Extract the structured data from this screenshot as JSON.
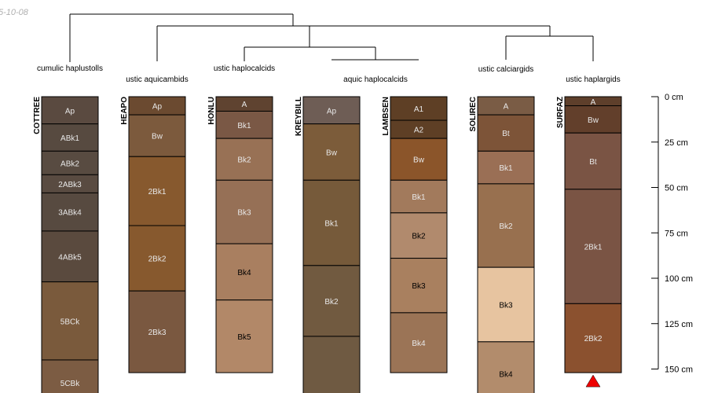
{
  "date_stamp": "5-10-08",
  "depth_unit": "cm",
  "depth_axis": {
    "min": 0,
    "max": 150,
    "ticks": [
      {
        "value": 0,
        "label": "0 cm"
      },
      {
        "value": 25,
        "label": "25 cm"
      },
      {
        "value": 50,
        "label": "50 cm"
      },
      {
        "value": 75,
        "label": "75 cm"
      },
      {
        "value": 100,
        "label": "100 cm"
      },
      {
        "value": 125,
        "label": "125 cm"
      },
      {
        "value": 150,
        "label": "150 cm"
      }
    ]
  },
  "taxa": [
    {
      "label": "cumulic haplustolls"
    },
    {
      "label": "ustic aquicambids"
    },
    {
      "label": "ustic haplocalcids"
    },
    {
      "label": "aquic haplocalcids"
    },
    {
      "label": "ustic calciargids"
    },
    {
      "label": "ustic haplargids"
    }
  ],
  "profiles": [
    {
      "name": "COTTREE",
      "horizons": [
        {
          "name": "Ap",
          "top": 0,
          "bottom": 15,
          "color": "#5a4a40",
          "text_color": "#e8e8e8"
        },
        {
          "name": "ABk1",
          "top": 15,
          "bottom": 30,
          "color": "#574a40",
          "text_color": "#e8e8e8"
        },
        {
          "name": "ABk2",
          "top": 30,
          "bottom": 43,
          "color": "#584b41",
          "text_color": "#e8e8e8"
        },
        {
          "name": "2ABk3",
          "top": 43,
          "bottom": 53,
          "color": "#594b41",
          "text_color": "#e8e8e8"
        },
        {
          "name": "3ABk4",
          "top": 53,
          "bottom": 74,
          "color": "#574a40",
          "text_color": "#e8e8e8"
        },
        {
          "name": "4ABk5",
          "top": 74,
          "bottom": 102,
          "color": "#5a4a3e",
          "text_color": "#e8e8e8"
        },
        {
          "name": "5BCk",
          "top": 102,
          "bottom": 145,
          "color": "#7a5a3c",
          "text_color": "#e8e8e8"
        },
        {
          "name": "5CBk",
          "top": 145,
          "bottom": 170,
          "color": "#7c5c43",
          "text_color": "#e8e8e8"
        }
      ]
    },
    {
      "name": "HEAPO",
      "horizons": [
        {
          "name": "Ap",
          "top": 0,
          "bottom": 10,
          "color": "#6b4a30",
          "text_color": "#e8e8e8"
        },
        {
          "name": "Bw",
          "top": 10,
          "bottom": 33,
          "color": "#7c5a3d",
          "text_color": "#e8e8e8"
        },
        {
          "name": "2Bk1",
          "top": 33,
          "bottom": 71,
          "color": "#87592e",
          "text_color": "#e8e8e8"
        },
        {
          "name": "2Bk2",
          "top": 71,
          "bottom": 107,
          "color": "#87592e",
          "text_color": "#e8e8e8"
        },
        {
          "name": "2Bk3",
          "top": 107,
          "bottom": 152,
          "color": "#7a5840",
          "text_color": "#e8e8e8"
        }
      ]
    },
    {
      "name": "HONLU",
      "horizons": [
        {
          "name": "A",
          "top": 0,
          "bottom": 8,
          "color": "#5f4330",
          "text_color": "#e8e8e8"
        },
        {
          "name": "Bk1",
          "top": 8,
          "bottom": 23,
          "color": "#7a5845",
          "text_color": "#e8e8e8"
        },
        {
          "name": "Bk2",
          "top": 23,
          "bottom": 46,
          "color": "#987155",
          "text_color": "#e8e8e8"
        },
        {
          "name": "Bk3",
          "top": 46,
          "bottom": 81,
          "color": "#967056",
          "text_color": "#e8e8e8"
        },
        {
          "name": "Bk4",
          "top": 81,
          "bottom": 112,
          "color": "#a97f60",
          "text_color": "#000000"
        },
        {
          "name": "Bk5",
          "top": 112,
          "bottom": 152,
          "color": "#b28868",
          "text_color": "#000000"
        }
      ]
    },
    {
      "name": "KREYBILL",
      "horizons": [
        {
          "name": "Ap",
          "top": 0,
          "bottom": 15,
          "color": "#6e5d55",
          "text_color": "#e8e8e8"
        },
        {
          "name": "Bw",
          "top": 15,
          "bottom": 46,
          "color": "#7c5c3a",
          "text_color": "#e8e8e8"
        },
        {
          "name": "Bk1",
          "top": 46,
          "bottom": 93,
          "color": "#765a3a",
          "text_color": "#e8e8e8"
        },
        {
          "name": "Bk2",
          "top": 93,
          "bottom": 132,
          "color": "#715a40",
          "text_color": "#e8e8e8"
        },
        {
          "name": "",
          "top": 132,
          "bottom": 170,
          "color": "#6f5a42",
          "text_color": "#e8e8e8"
        }
      ]
    },
    {
      "name": "LAMBSEN",
      "horizons": [
        {
          "name": "A1",
          "top": 0,
          "bottom": 13,
          "color": "#5e3f25",
          "text_color": "#e8e8e8"
        },
        {
          "name": "A2",
          "top": 13,
          "bottom": 23,
          "color": "#5e3f25",
          "text_color": "#e8e8e8"
        },
        {
          "name": "Bw",
          "top": 23,
          "bottom": 46,
          "color": "#8b552a",
          "text_color": "#e8e8e8"
        },
        {
          "name": "Bk1",
          "top": 46,
          "bottom": 64,
          "color": "#a27a5c",
          "text_color": "#e8e8e8"
        },
        {
          "name": "Bk2",
          "top": 64,
          "bottom": 89,
          "color": "#b18a6d",
          "text_color": "#000000"
        },
        {
          "name": "Bk3",
          "top": 89,
          "bottom": 119,
          "color": "#a9805f",
          "text_color": "#000000"
        },
        {
          "name": "Bk4",
          "top": 119,
          "bottom": 152,
          "color": "#9b7456",
          "text_color": "#e8e8e8"
        }
      ]
    },
    {
      "name": "SOLIREC",
      "horizons": [
        {
          "name": "A",
          "top": 0,
          "bottom": 10,
          "color": "#7a5c45",
          "text_color": "#e8e8e8"
        },
        {
          "name": "Bt",
          "top": 10,
          "bottom": 30,
          "color": "#7d5438",
          "text_color": "#e8e8e8"
        },
        {
          "name": "Bk1",
          "top": 30,
          "bottom": 48,
          "color": "#9a6f55",
          "text_color": "#e8e8e8"
        },
        {
          "name": "Bk2",
          "top": 48,
          "bottom": 94,
          "color": "#98704f",
          "text_color": "#e8e8e8"
        },
        {
          "name": "Bk3",
          "top": 94,
          "bottom": 135,
          "color": "#e7c4a0",
          "text_color": "#000000"
        },
        {
          "name": "Bk4",
          "top": 135,
          "bottom": 170,
          "color": "#b28c6c",
          "text_color": "#000000"
        }
      ]
    },
    {
      "name": "SURFAZ",
      "horizons": [
        {
          "name": "A",
          "top": 0,
          "bottom": 5,
          "color": "#5e3f2b",
          "text_color": "#e8e8e8"
        },
        {
          "name": "Bw",
          "top": 5,
          "bottom": 20,
          "color": "#623f2b",
          "text_color": "#e8e8e8"
        },
        {
          "name": "Bt",
          "top": 20,
          "bottom": 51,
          "color": "#7a5444",
          "text_color": "#e8e8e8"
        },
        {
          "name": "2Bk1",
          "top": 51,
          "bottom": 114,
          "color": "#7a5444",
          "text_color": "#e8e8e8"
        },
        {
          "name": "2Bk2",
          "top": 114,
          "bottom": 152,
          "color": "#8b512f",
          "text_color": "#e8e8e8"
        }
      ],
      "bottom_marker": {
        "color": "#ee0000"
      }
    }
  ]
}
